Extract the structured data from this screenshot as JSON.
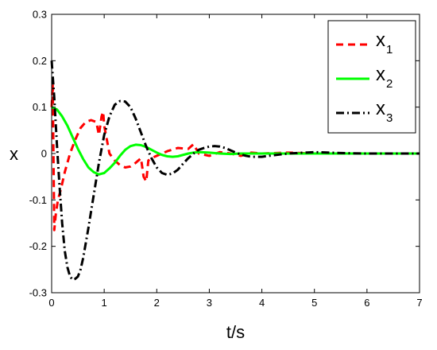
{
  "chart_data": {
    "type": "line",
    "title": "",
    "xlabel": "t/s",
    "ylabel": "x",
    "xlim": [
      0,
      7
    ],
    "ylim": [
      -0.3,
      0.3
    ],
    "xticks": [
      "0",
      "1",
      "2",
      "3",
      "4",
      "5",
      "6",
      "7"
    ],
    "yticks": [
      "-0.3",
      "-0.2",
      "-0.1",
      "0",
      "0.1",
      "0.2",
      "0.3"
    ],
    "grid": false,
    "legend_position": "top-right",
    "series": [
      {
        "name": "x",
        "name_subscript": "1",
        "color": "#ff0000",
        "style": "dashed",
        "x": [
          0,
          0.02,
          0.05,
          0.08,
          0.12,
          0.18,
          0.25,
          0.35,
          0.45,
          0.55,
          0.65,
          0.75,
          0.85,
          0.9,
          0.95,
          0.98,
          1.0,
          1.05,
          1.1,
          1.2,
          1.3,
          1.4,
          1.5,
          1.6,
          1.7,
          1.75,
          1.8,
          1.84,
          1.9,
          2.0,
          2.2,
          2.4,
          2.6,
          2.7,
          2.8,
          3.0,
          3.2,
          3.4,
          3.6,
          3.8,
          4.0,
          4.5,
          5.0,
          5.5,
          6.0,
          7.0
        ],
        "y": [
          0.1,
          0.15,
          -0.165,
          -0.13,
          -0.1,
          -0.075,
          -0.04,
          0.0,
          0.03,
          0.055,
          0.068,
          0.072,
          0.068,
          0.04,
          0.08,
          0.09,
          0.06,
          0.03,
          0.0,
          -0.015,
          -0.025,
          -0.03,
          -0.028,
          -0.02,
          -0.01,
          -0.05,
          -0.06,
          -0.015,
          -0.01,
          -0.005,
          0.005,
          0.012,
          0.01,
          0.02,
          0.0,
          -0.005,
          0.003,
          0.0,
          -0.005,
          0.002,
          0.0,
          0.002,
          0.0,
          0.0,
          0.0,
          0.0
        ]
      },
      {
        "name": "x",
        "name_subscript": "2",
        "color": "#00ff00",
        "style": "solid",
        "x": [
          0,
          0.1,
          0.2,
          0.3,
          0.4,
          0.5,
          0.6,
          0.7,
          0.8,
          0.9,
          1.0,
          1.1,
          1.2,
          1.3,
          1.4,
          1.5,
          1.6,
          1.7,
          1.8,
          1.9,
          2.0,
          2.1,
          2.2,
          2.3,
          2.4,
          2.5,
          2.6,
          2.7,
          2.8,
          3.0,
          3.2,
          3.4,
          3.6,
          3.8,
          4.0,
          4.5,
          5.0,
          5.5,
          6.0,
          7.0
        ],
        "y": [
          0.1,
          0.095,
          0.08,
          0.06,
          0.035,
          0.01,
          -0.012,
          -0.03,
          -0.04,
          -0.045,
          -0.042,
          -0.032,
          -0.02,
          -0.005,
          0.008,
          0.016,
          0.019,
          0.018,
          0.014,
          0.008,
          0.002,
          -0.003,
          -0.006,
          -0.007,
          -0.006,
          -0.003,
          0.0,
          0.002,
          0.003,
          0.002,
          0.0,
          -0.001,
          0.0,
          0.0,
          0.0,
          0.0,
          0.0,
          0.0,
          0.0,
          0.0
        ]
      },
      {
        "name": "x",
        "name_subscript": "3",
        "color": "#000000",
        "style": "dashdot",
        "x": [
          0,
          0.05,
          0.1,
          0.15,
          0.2,
          0.25,
          0.3,
          0.35,
          0.4,
          0.45,
          0.5,
          0.55,
          0.6,
          0.7,
          0.8,
          0.9,
          1.0,
          1.1,
          1.2,
          1.3,
          1.4,
          1.5,
          1.6,
          1.7,
          1.8,
          1.9,
          2.0,
          2.1,
          2.2,
          2.3,
          2.4,
          2.5,
          2.6,
          2.7,
          2.8,
          2.9,
          3.0,
          3.1,
          3.2,
          3.3,
          3.4,
          3.5,
          3.6,
          3.7,
          3.8,
          4.0,
          4.2,
          4.5,
          5.0,
          5.5,
          6.0,
          6.5,
          7.0
        ],
        "y": [
          0.2,
          0.12,
          0.02,
          -0.07,
          -0.15,
          -0.21,
          -0.245,
          -0.265,
          -0.272,
          -0.27,
          -0.265,
          -0.25,
          -0.225,
          -0.16,
          -0.09,
          -0.02,
          0.04,
          0.08,
          0.105,
          0.113,
          0.112,
          0.1,
          0.075,
          0.045,
          0.015,
          -0.01,
          -0.03,
          -0.042,
          -0.046,
          -0.043,
          -0.035,
          -0.022,
          -0.01,
          0.0,
          0.008,
          0.012,
          0.015,
          0.016,
          0.015,
          0.012,
          0.007,
          0.002,
          -0.002,
          -0.005,
          -0.007,
          -0.007,
          -0.004,
          0.0,
          0.003,
          0.001,
          0.0,
          0.0,
          0.0
        ]
      }
    ]
  }
}
